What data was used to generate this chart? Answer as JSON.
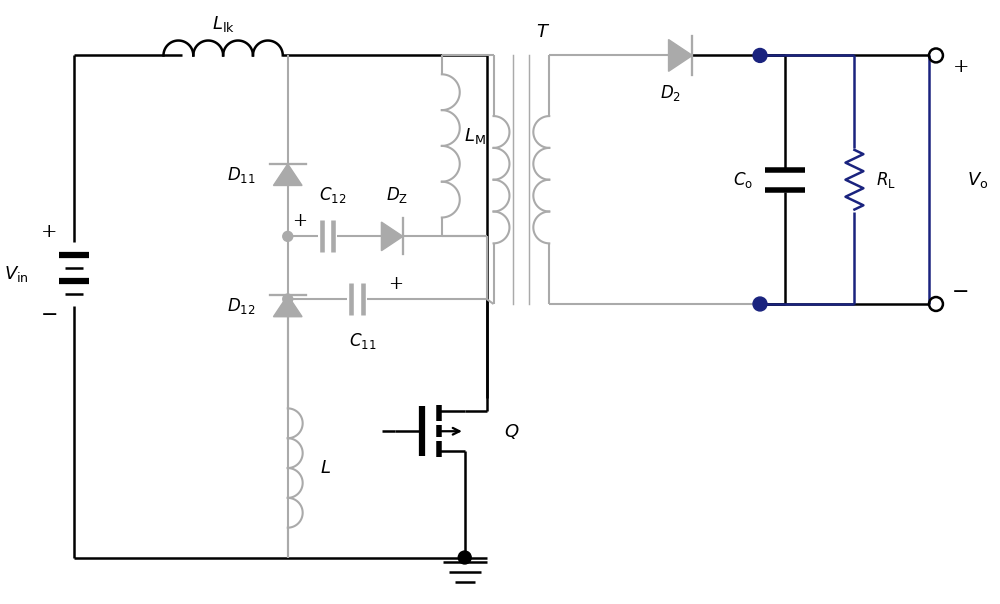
{
  "fig_width": 10.0,
  "fig_height": 6.04,
  "dpi": 100,
  "bg_color": "#ffffff",
  "black": "#000000",
  "gray": "#aaaaaa",
  "dark_blue": "#1a237e",
  "lw": 1.8,
  "glw": 1.5
}
